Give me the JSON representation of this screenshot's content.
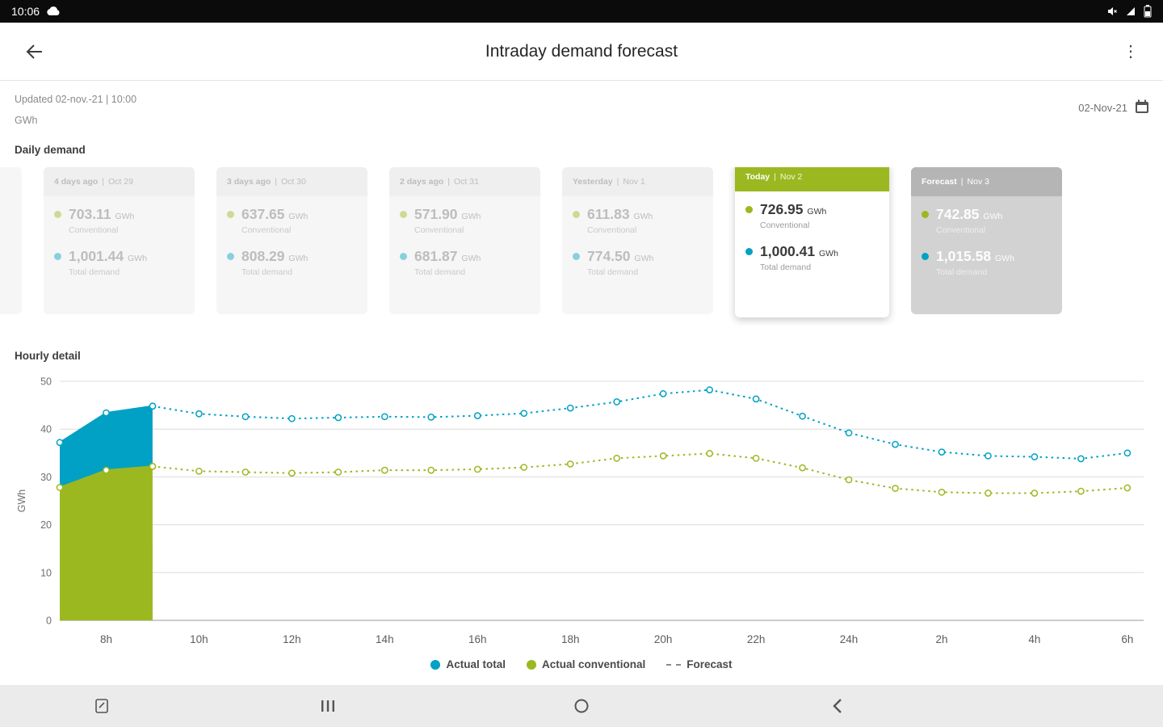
{
  "status_bar": {
    "time": "10:06"
  },
  "header": {
    "title": "Intraday demand forecast"
  },
  "meta": {
    "updated": "Updated 02-nov.-21 | 10:00",
    "unit": "GWh",
    "date": "02-Nov-21"
  },
  "daily_demand": {
    "section_title": "Daily demand",
    "unit": "GWh",
    "conventional_label": "Conventional",
    "total_label": "Total demand",
    "cards": [
      {
        "label": "4 days ago",
        "date": "Oct 29",
        "conventional": "703.11",
        "total": "1,001.44",
        "state": "past"
      },
      {
        "label": "3 days ago",
        "date": "Oct 30",
        "conventional": "637.65",
        "total": "808.29",
        "state": "past"
      },
      {
        "label": "2 days ago",
        "date": "Oct 31",
        "conventional": "571.90",
        "total": "681.87",
        "state": "past"
      },
      {
        "label": "Yesterday",
        "date": "Nov 1",
        "conventional": "611.83",
        "total": "774.50",
        "state": "past"
      },
      {
        "label": "Today",
        "date": "Nov 2",
        "conventional": "726.95",
        "total": "1,000.41",
        "state": "today"
      },
      {
        "label": "Forecast",
        "date": "Nov 3",
        "conventional": "742.85",
        "total": "1,015.58",
        "state": "forecast"
      }
    ]
  },
  "hourly": {
    "section_title": "Hourly detail"
  },
  "chart_data": {
    "type": "line",
    "title": "Hourly detail",
    "xlabel": "",
    "ylabel": "GWh",
    "ylim": [
      0,
      50
    ],
    "yticks": [
      0,
      10,
      20,
      30,
      40,
      50
    ],
    "grid": true,
    "legend_position": "bottom",
    "xticks": [
      {
        "x": 8,
        "label": "8h"
      },
      {
        "x": 10,
        "label": "10h"
      },
      {
        "x": 12,
        "label": "12h"
      },
      {
        "x": 14,
        "label": "14h"
      },
      {
        "x": 16,
        "label": "16h"
      },
      {
        "x": 18,
        "label": "18h"
      },
      {
        "x": 20,
        "label": "20h"
      },
      {
        "x": 22,
        "label": "22h"
      },
      {
        "x": 24,
        "label": "24h"
      },
      {
        "x": 26,
        "label": "2h"
      },
      {
        "x": 28,
        "label": "4h"
      },
      {
        "x": 30,
        "label": "6h"
      }
    ],
    "series": [
      {
        "name": "Actual total",
        "style": "area",
        "color": "#00a1c4",
        "x": [
          7,
          8,
          9
        ],
        "values": [
          37.2,
          43.4,
          44.8
        ]
      },
      {
        "name": "Actual conventional",
        "style": "area-base",
        "color": "#9cb820",
        "x": [
          7,
          8,
          9
        ],
        "values": [
          27.8,
          31.4,
          32.2
        ]
      },
      {
        "name": "Forecast total",
        "style": "dashed",
        "color": "#00a1c4",
        "x": [
          9,
          10,
          11,
          12,
          13,
          14,
          15,
          16,
          17,
          18,
          19,
          20,
          21,
          22,
          23,
          24,
          25,
          26,
          27,
          28,
          29,
          30
        ],
        "values": [
          44.8,
          43.2,
          42.6,
          42.2,
          42.4,
          42.6,
          42.5,
          42.8,
          43.3,
          44.4,
          45.7,
          47.4,
          48.2,
          46.3,
          42.7,
          39.2,
          36.8,
          35.2,
          34.4,
          34.2,
          33.8,
          35.0
        ]
      },
      {
        "name": "Forecast conventional",
        "style": "dashed",
        "color": "#9cb820",
        "x": [
          9,
          10,
          11,
          12,
          13,
          14,
          15,
          16,
          17,
          18,
          19,
          20,
          21,
          22,
          23,
          24,
          25,
          26,
          27,
          28,
          29,
          30
        ],
        "values": [
          32.2,
          31.2,
          31.0,
          30.8,
          31.0,
          31.4,
          31.4,
          31.6,
          32.0,
          32.7,
          33.9,
          34.4,
          34.9,
          33.9,
          31.9,
          29.4,
          27.6,
          26.8,
          26.6,
          26.6,
          27.0,
          27.7
        ]
      }
    ]
  },
  "legend": {
    "actual_total": "Actual total",
    "actual_conventional": "Actual conventional",
    "forecast": "Forecast"
  },
  "colors": {
    "accent_green": "#9cb820",
    "accent_blue": "#00a1c4",
    "forecast_gray": "#b5b5b5"
  }
}
